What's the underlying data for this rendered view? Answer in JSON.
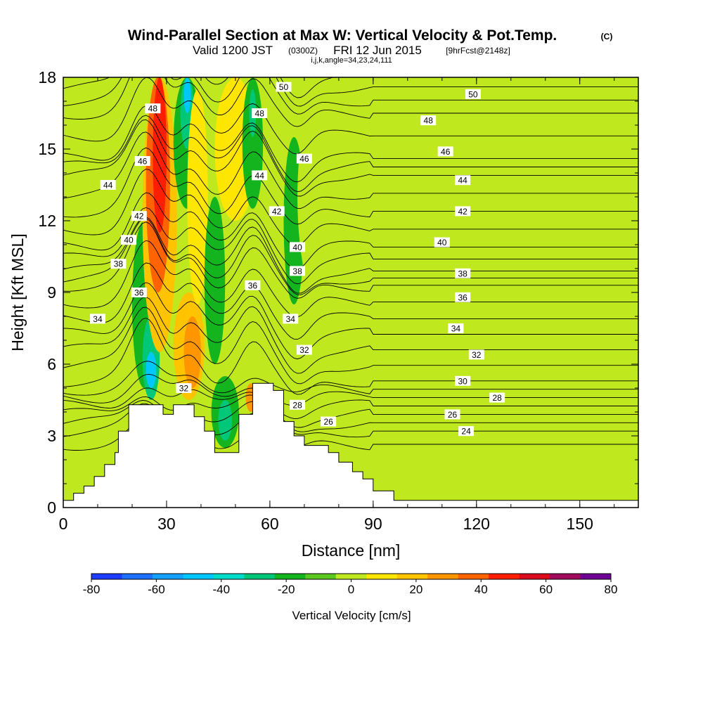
{
  "chart_data": {
    "type": "heatmap",
    "title": "Wind-Parallel Section at Max W: Vertical Velocity & Pot.Temp.",
    "title_unit": "(C)",
    "subtitle_main": "Valid 1200 JST",
    "subtitle_utc": "(0300Z)",
    "subtitle_date": "FRI 12 Jun 2015",
    "subtitle_run": "[9hrFcst@2148z]",
    "subtitle_index": "i,j,k,angle=34,23,24,111",
    "xlabel": "Distance [nm]",
    "ylabel": "Height [Kft MSL]",
    "xlim": [
      0,
      167
    ],
    "ylim": [
      0,
      18
    ],
    "x_ticks": [
      "0",
      "30",
      "60",
      "90",
      "120",
      "150"
    ],
    "y_ticks": [
      "0",
      "3",
      "6",
      "9",
      "12",
      "15",
      "18"
    ],
    "colorbar": {
      "label": "Vertical Velocity [cm/s]",
      "ticks": [
        "-80",
        "-60",
        "-40",
        "-20",
        "0",
        "20",
        "40",
        "60",
        "80"
      ],
      "bins": [
        -80,
        -70,
        -60,
        -50,
        -40,
        -30,
        -20,
        -10,
        0,
        10,
        20,
        30,
        40,
        50,
        60,
        70,
        80
      ],
      "colors": [
        "#1e3cff",
        "#1e6eff",
        "#14a0ff",
        "#00c8ff",
        "#00dcc8",
        "#00c878",
        "#14b41e",
        "#5ac81e",
        "#c0e81e",
        "#ffe600",
        "#ffc300",
        "#ff9600",
        "#ff6400",
        "#ff1e00",
        "#dc0a1e",
        "#a00a5a",
        "#6e0096"
      ]
    },
    "background_class": 0,
    "vertical_velocity_bands": [
      {
        "x_range": [
          9,
          14
        ],
        "y_range": [
          4.5,
          13.5
        ],
        "value": 5
      },
      {
        "x_range": [
          20,
          27
        ],
        "y_range": [
          5.0,
          12.0
        ],
        "value": -15
      },
      {
        "x_range": [
          23,
          28
        ],
        "y_range": [
          4.5,
          8.0
        ],
        "value": -30
      },
      {
        "x_range": [
          24,
          27
        ],
        "y_range": [
          5.0,
          6.5
        ],
        "value": -45
      },
      {
        "x_range": [
          23,
          33
        ],
        "y_range": [
          6.5,
          18.0
        ],
        "value": 20
      },
      {
        "x_range": [
          24,
          31
        ],
        "y_range": [
          9.0,
          18.0
        ],
        "value": 40
      },
      {
        "x_range": [
          26,
          30
        ],
        "y_range": [
          11.5,
          18.0
        ],
        "value": 50
      },
      {
        "x_range": [
          32,
          40
        ],
        "y_range": [
          12.5,
          18.0
        ],
        "value": -15
      },
      {
        "x_range": [
          34,
          38
        ],
        "y_range": [
          15.0,
          18.0
        ],
        "value": -30
      },
      {
        "x_range": [
          35,
          37
        ],
        "y_range": [
          16.5,
          18.0
        ],
        "value": -45
      },
      {
        "x_range": [
          32,
          41
        ],
        "y_range": [
          4.5,
          9.0
        ],
        "value": 20
      },
      {
        "x_range": [
          35,
          40
        ],
        "y_range": [
          5.0,
          8.0
        ],
        "value": 30
      },
      {
        "x_range": [
          36,
          42
        ],
        "y_range": [
          8.5,
          17.5
        ],
        "value": 15
      },
      {
        "x_range": [
          41,
          47
        ],
        "y_range": [
          6.0,
          13.0
        ],
        "value": -12
      },
      {
        "x_range": [
          43,
          51
        ],
        "y_range": [
          2.5,
          5.5
        ],
        "value": -12
      },
      {
        "x_range": [
          45,
          49
        ],
        "y_range": [
          2.8,
          4.5
        ],
        "value": -25
      },
      {
        "x_range": [
          44,
          56
        ],
        "y_range": [
          12.0,
          18.0
        ],
        "value": 15
      },
      {
        "x_range": [
          52,
          58
        ],
        "y_range": [
          12.5,
          18.0
        ],
        "value": -15
      },
      {
        "x_range": [
          54,
          56
        ],
        "y_range": [
          15.5,
          17.5
        ],
        "value": -25
      },
      {
        "x_range": [
          53,
          56
        ],
        "y_range": [
          4.0,
          5.2
        ],
        "value": 30
      },
      {
        "x_range": [
          55,
          70
        ],
        "y_range": [
          5.0,
          12.0
        ],
        "value": 8
      },
      {
        "x_range": [
          64,
          70
        ],
        "y_range": [
          8.5,
          15.5
        ],
        "value": -12
      },
      {
        "x_range": [
          68,
          86
        ],
        "y_range": [
          8.0,
          18.0
        ],
        "value": 5
      },
      {
        "x_range": [
          86,
          93
        ],
        "y_range": [
          10.0,
          16.5
        ],
        "value": 5
      },
      {
        "x_range": [
          70,
          80
        ],
        "y_range": [
          2.5,
          5.5
        ],
        "value": 5
      },
      {
        "x_range": [
          100,
          111
        ],
        "y_range": [
          0.3,
          2.5
        ],
        "value": 5
      },
      {
        "x_range": [
          138,
          150
        ],
        "y_range": [
          0.5,
          4.0
        ],
        "value": 5
      },
      {
        "x_range": [
          158,
          167
        ],
        "y_range": [
          0.5,
          3.5
        ],
        "value": 5
      },
      {
        "x_range": [
          162,
          167
        ],
        "y_range": [
          14.0,
          18.0
        ],
        "value": 5
      }
    ],
    "theta_contours": [
      {
        "value": 50,
        "label_x": 64,
        "label_y": 17.6
      },
      {
        "value": 48,
        "label_x": 57,
        "label_y": 16.5
      },
      {
        "value": 46,
        "label_x": 70,
        "label_y": 14.6
      },
      {
        "value": 44,
        "label_x": 57,
        "label_y": 13.9
      },
      {
        "value": 42,
        "label_x": 62,
        "label_y": 12.4
      },
      {
        "value": 40,
        "label_x": 68,
        "label_y": 10.9
      },
      {
        "value": 38,
        "label_x": 68,
        "label_y": 9.9
      },
      {
        "value": 36,
        "label_x": 55,
        "label_y": 9.3
      },
      {
        "value": 34,
        "label_x": 66,
        "label_y": 7.9
      },
      {
        "value": 32,
        "label_x": 70,
        "label_y": 6.6
      },
      {
        "value": 30,
        "label_x": 116,
        "label_y": 5.3
      },
      {
        "value": 28,
        "label_x": 126,
        "label_y": 4.6
      },
      {
        "value": 26,
        "label_x": 113,
        "label_y": 3.9
      },
      {
        "value": 24,
        "label_x": 117,
        "label_y": 3.2
      }
    ],
    "extra_contour_labels": [
      {
        "text": "50",
        "x": 119,
        "y": 17.3
      },
      {
        "text": "48",
        "x": 26,
        "y": 16.7
      },
      {
        "text": "48",
        "x": 106,
        "y": 16.2
      },
      {
        "text": "46",
        "x": 23,
        "y": 14.5
      },
      {
        "text": "46",
        "x": 111,
        "y": 14.9
      },
      {
        "text": "44",
        "x": 13,
        "y": 13.5
      },
      {
        "text": "44",
        "x": 116,
        "y": 13.7
      },
      {
        "text": "42",
        "x": 22,
        "y": 12.2
      },
      {
        "text": "42",
        "x": 116,
        "y": 12.4
      },
      {
        "text": "40",
        "x": 19,
        "y": 11.2
      },
      {
        "text": "40",
        "x": 110,
        "y": 11.1
      },
      {
        "text": "38",
        "x": 16,
        "y": 10.2
      },
      {
        "text": "38",
        "x": 116,
        "y": 9.8
      },
      {
        "text": "36",
        "x": 22,
        "y": 9.0
      },
      {
        "text": "36",
        "x": 116,
        "y": 8.8
      },
      {
        "text": "34",
        "x": 10,
        "y": 7.9
      },
      {
        "text": "34",
        "x": 114,
        "y": 7.5
      },
      {
        "text": "32",
        "x": 35,
        "y": 5.0
      },
      {
        "text": "32",
        "x": 120,
        "y": 6.4
      },
      {
        "text": "28",
        "x": 68,
        "y": 4.3
      },
      {
        "text": "26",
        "x": 77,
        "y": 3.6
      }
    ],
    "terrain": [
      [
        0,
        0
      ],
      [
        0,
        0.3
      ],
      [
        3,
        0.3
      ],
      [
        3,
        0.6
      ],
      [
        6,
        0.6
      ],
      [
        6,
        0.9
      ],
      [
        9,
        0.9
      ],
      [
        9,
        1.3
      ],
      [
        12,
        1.3
      ],
      [
        12,
        1.8
      ],
      [
        15,
        1.8
      ],
      [
        15,
        2.3
      ],
      [
        16,
        2.3
      ],
      [
        16,
        3.2
      ],
      [
        19,
        3.2
      ],
      [
        19,
        4.3
      ],
      [
        29,
        4.3
      ],
      [
        29,
        3.9
      ],
      [
        32,
        3.9
      ],
      [
        32,
        4.3
      ],
      [
        38,
        4.3
      ],
      [
        38,
        3.8
      ],
      [
        41,
        3.8
      ],
      [
        41,
        3.2
      ],
      [
        44,
        3.2
      ],
      [
        44,
        2.3
      ],
      [
        51,
        2.3
      ],
      [
        51,
        3.9
      ],
      [
        55,
        3.9
      ],
      [
        55,
        5.2
      ],
      [
        61,
        5.2
      ],
      [
        61,
        4.9
      ],
      [
        64,
        4.9
      ],
      [
        64,
        3.6
      ],
      [
        67,
        3.6
      ],
      [
        67,
        3.0
      ],
      [
        70,
        3.0
      ],
      [
        70,
        2.6
      ],
      [
        77,
        2.6
      ],
      [
        77,
        2.3
      ],
      [
        80,
        2.3
      ],
      [
        80,
        1.9
      ],
      [
        84,
        1.9
      ],
      [
        84,
        1.5
      ],
      [
        87,
        1.5
      ],
      [
        87,
        1.2
      ],
      [
        90,
        1.2
      ],
      [
        90,
        0.7
      ],
      [
        96,
        0.7
      ],
      [
        96,
        0.3
      ],
      [
        167,
        0.3
      ],
      [
        167,
        0
      ]
    ]
  }
}
